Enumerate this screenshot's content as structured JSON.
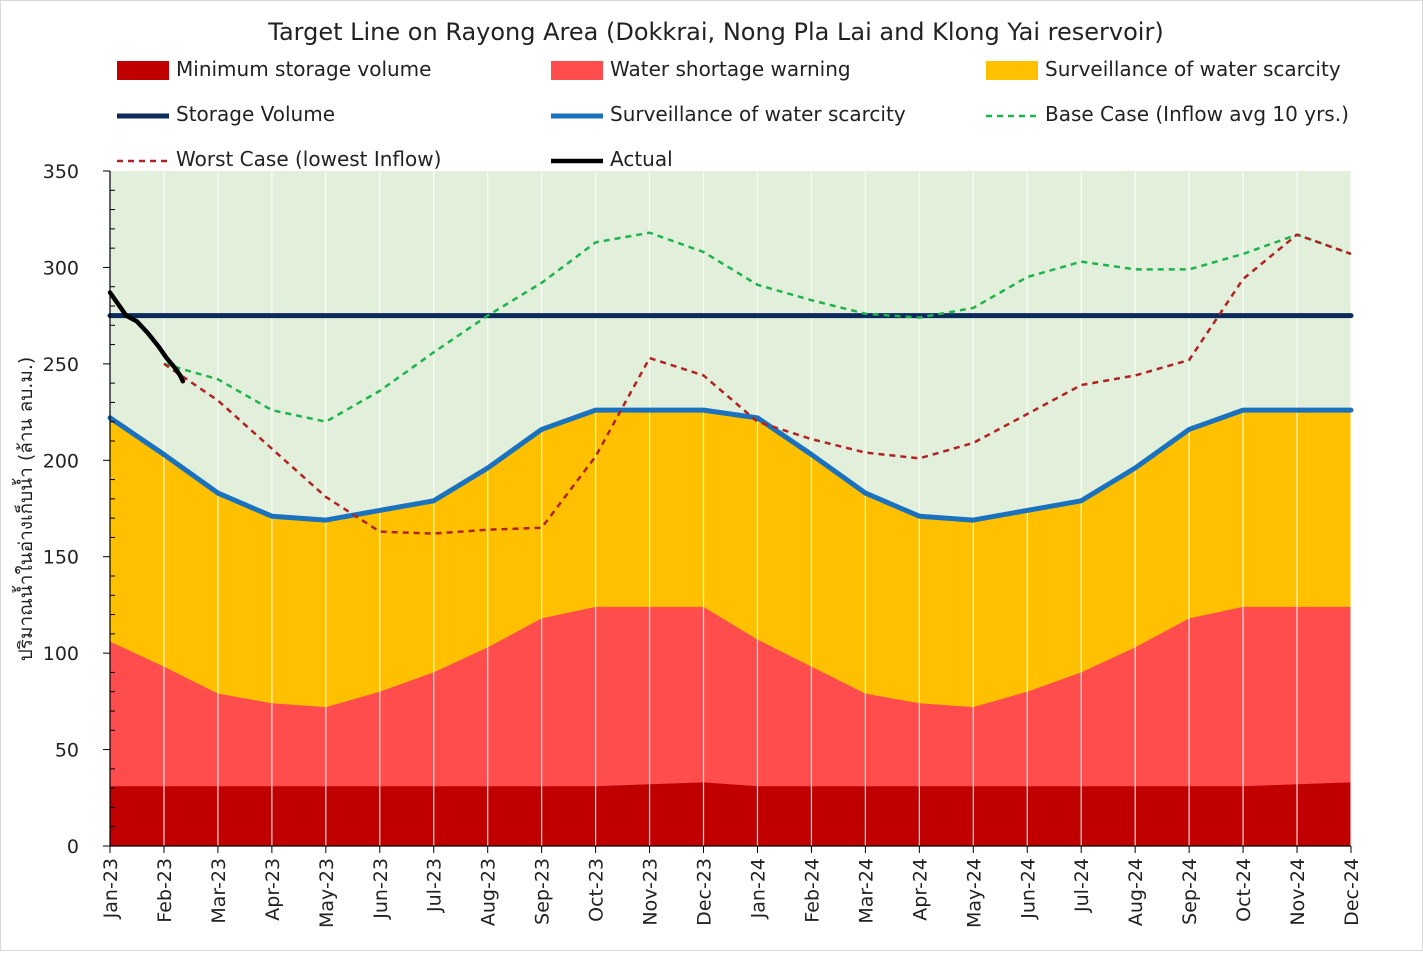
{
  "chart_data": {
    "type": "area",
    "title": "Target Line on Rayong Area (Dokkrai, Nong Pla Lai and Klong Yai reservoir)",
    "xlabel": "",
    "ylabel": "ปริมาณน้ำในอ่างเก็บน้ำ (ล้าน ลบ.ม.)",
    "ylim": [
      0,
      350
    ],
    "yticks": [
      0,
      50,
      100,
      150,
      200,
      250,
      300,
      350
    ],
    "grid": true,
    "legend_position": "top",
    "categories": [
      "Jan-23",
      "Feb-23",
      "Mar-23",
      "Apr-23",
      "May-23",
      "Jun-23",
      "Jul-23",
      "Aug-23",
      "Sep-23",
      "Oct-23",
      "Nov-23",
      "Dec-23",
      "Jan-24",
      "Feb-24",
      "Mar-24",
      "Apr-24",
      "May-24",
      "Jun-24",
      "Jul-24",
      "Aug-24",
      "Sep-24",
      "Oct-24",
      "Nov-24",
      "Dec-24"
    ],
    "background_color": "#e2efda",
    "legend": [
      {
        "label": "Minimum storage volume",
        "kind": "area",
        "color": "#c00000"
      },
      {
        "label": "Water shortage warning",
        "kind": "area",
        "color": "#ff4d4d"
      },
      {
        "label": "Surveillance of water scarcity",
        "kind": "area",
        "color": "#ffc000"
      },
      {
        "label": "Storage Volume",
        "kind": "line",
        "color": "#0d2a5c"
      },
      {
        "label": "Surveillance of water scarcity",
        "kind": "line",
        "color": "#1a72bf"
      },
      {
        "label": "Base Case (Inflow avg 10 yrs.)",
        "kind": "dashed",
        "color": "#1db34d"
      },
      {
        "label": "Worst Case (lowest Inflow)",
        "kind": "dashed",
        "color": "#b22222"
      },
      {
        "label": "Actual",
        "kind": "line",
        "color": "#000000"
      }
    ],
    "series": [
      {
        "name": "Minimum storage volume",
        "type": "area",
        "color": "#c00000",
        "values": [
          31,
          31,
          31,
          31,
          31,
          31,
          31,
          31,
          31,
          31,
          32,
          33,
          31,
          31,
          31,
          31,
          31,
          31,
          31,
          31,
          31,
          31,
          32,
          33
        ]
      },
      {
        "name": "Water shortage warning",
        "type": "area",
        "color": "#ff4d4d",
        "values": [
          106,
          93,
          79,
          74,
          72,
          80,
          90,
          103,
          118,
          124,
          124,
          124,
          107,
          93,
          79,
          74,
          72,
          80,
          90,
          103,
          118,
          124,
          124,
          124
        ]
      },
      {
        "name": "Surveillance of water scarcity",
        "type": "area",
        "color": "#ffc000",
        "values": [
          222,
          203,
          183,
          171,
          169,
          174,
          179,
          196,
          216,
          226,
          226,
          226,
          222,
          203,
          183,
          171,
          169,
          174,
          179,
          196,
          216,
          226,
          226,
          226
        ]
      },
      {
        "name": "Surveillance of water scarcity",
        "type": "line",
        "color": "#1a72bf",
        "values": [
          222,
          203,
          183,
          171,
          169,
          174,
          179,
          196,
          216,
          226,
          226,
          226,
          222,
          203,
          183,
          171,
          169,
          174,
          179,
          196,
          216,
          226,
          226,
          226
        ]
      },
      {
        "name": "Storage Volume",
        "type": "line",
        "color": "#0d2a5c",
        "values": [
          275,
          275,
          275,
          275,
          275,
          275,
          275,
          275,
          275,
          275,
          275,
          275,
          275,
          275,
          275,
          275,
          275,
          275,
          275,
          275,
          275,
          275,
          275,
          275
        ]
      },
      {
        "name": "Base Case (Inflow avg 10 yrs.)",
        "type": "dashed",
        "color": "#1db34d",
        "values": [
          null,
          250,
          242,
          226,
          220,
          236,
          256,
          275,
          292,
          313,
          318,
          308,
          291,
          283,
          276,
          274,
          279,
          295,
          303,
          299,
          299,
          307,
          317,
          307
        ]
      },
      {
        "name": "Worst Case (lowest Inflow)",
        "type": "dashed",
        "color": "#b22222",
        "values": [
          null,
          250,
          231,
          206,
          181,
          163,
          162,
          164,
          165,
          202,
          253,
          244,
          220,
          211,
          204,
          201,
          209,
          224,
          239,
          244,
          252,
          294,
          317,
          307
        ]
      },
      {
        "name": "Actual",
        "type": "line",
        "color": "#000000",
        "points": [
          [
            0,
            287
          ],
          [
            0.15,
            281
          ],
          [
            0.3,
            275
          ],
          [
            0.5,
            272
          ],
          [
            0.7,
            266
          ],
          [
            0.9,
            259
          ],
          [
            1.05,
            253
          ],
          [
            1.2,
            248
          ],
          [
            1.3,
            244
          ],
          [
            1.35,
            241
          ]
        ]
      }
    ]
  }
}
